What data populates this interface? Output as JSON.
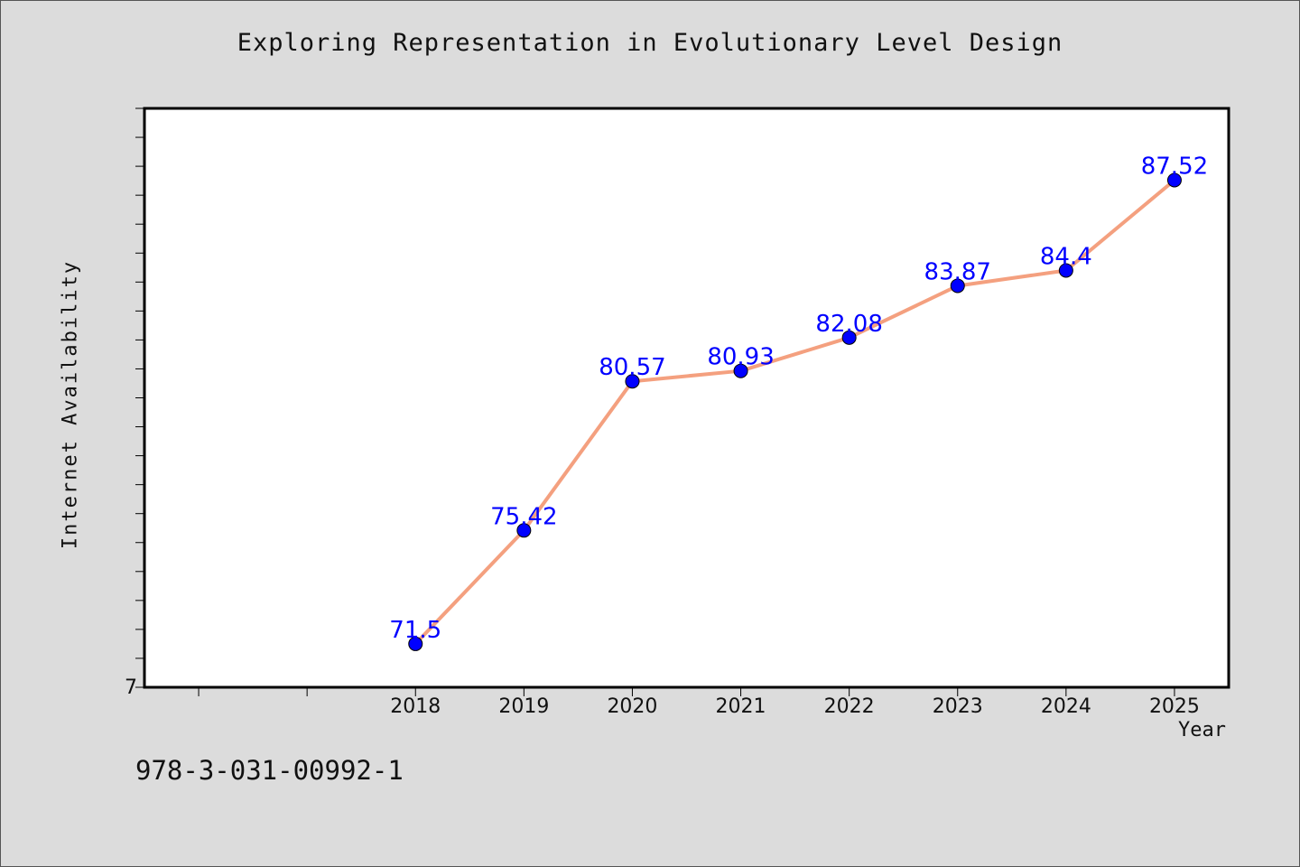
{
  "chart_data": {
    "type": "line",
    "title": "Exploring Representation in Evolutionary Level Design",
    "xlabel": "Year",
    "ylabel": "Internet Availability",
    "x": [
      "2018",
      "2019",
      "2020",
      "2021",
      "2022",
      "2023",
      "2024",
      "2025"
    ],
    "series": [
      {
        "values": [
          71.5,
          75.42,
          80.57,
          80.93,
          82.08,
          83.87,
          84.4,
          87.52
        ],
        "line_color": "#f4a07f",
        "marker_color": "#0000ff"
      }
    ],
    "data_labels": [
      "71.5",
      "75.42",
      "80.57",
      "80.93",
      "82.08",
      "83.87",
      "84.4",
      "87.52"
    ],
    "y_tick_label": "7",
    "ylim": [
      70,
      90
    ],
    "grid": false,
    "legend": "none",
    "label_color": "#0000ff"
  },
  "footer_text": "978-3-031-00992-1"
}
